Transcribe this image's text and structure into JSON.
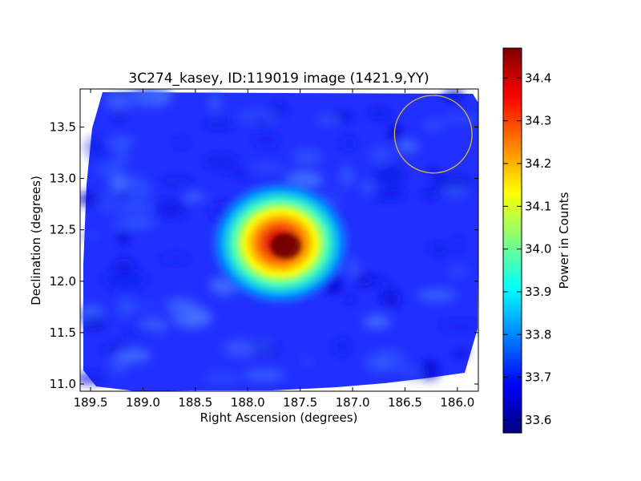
{
  "chart_data": {
    "type": "heatmap",
    "title": "3C274_kasey, ID:119019 image (1421.9,YY)",
    "xlabel": "Right Ascension (degrees)",
    "ylabel": "Declination (degrees)",
    "xlim": [
      189.6,
      185.8
    ],
    "ylim": [
      10.93,
      13.87
    ],
    "x_ticks": [
      "189.5",
      "189.0",
      "188.5",
      "188.0",
      "187.5",
      "187.0",
      "186.5",
      "186.0"
    ],
    "x_tick_values": [
      189.5,
      189.0,
      188.5,
      188.0,
      187.5,
      187.0,
      186.5,
      186.0
    ],
    "y_ticks": [
      "11.0",
      "11.5",
      "12.0",
      "12.5",
      "13.0",
      "13.5"
    ],
    "y_tick_values": [
      11.0,
      11.5,
      12.0,
      12.5,
      13.0,
      13.5
    ],
    "colorbar": {
      "label": "Power in Counts",
      "range": [
        33.57,
        34.47
      ],
      "ticks": [
        "33.6",
        "33.7",
        "33.8",
        "33.9",
        "34.0",
        "34.1",
        "34.2",
        "34.3",
        "34.4"
      ],
      "tick_values": [
        33.6,
        33.7,
        33.8,
        33.9,
        34.0,
        34.1,
        34.2,
        34.3,
        34.4
      ],
      "colormap": "jet"
    },
    "source": {
      "ra": 187.7,
      "dec": 12.39,
      "peak": 34.46,
      "background": 33.69
    },
    "beam_circle": {
      "ra": 186.23,
      "dec": 13.43,
      "radius_deg": 0.37,
      "color": "#d4b83a"
    },
    "grid": false
  }
}
